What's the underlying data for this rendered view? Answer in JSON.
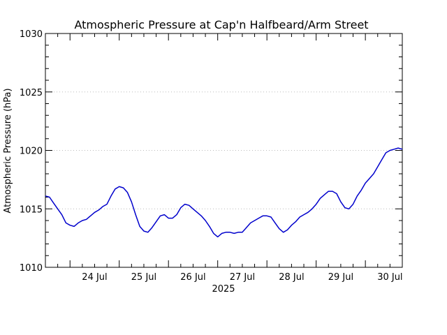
{
  "chart_data": {
    "type": "line",
    "title": "Atmospheric Pressure at Cap'n Halfbeard/Arm Street",
    "xlabel": "2025",
    "ylabel": "Atmospheric Pressure (hPa)",
    "xlim": [
      "2025-07-23 12:00",
      "2025-07-30 18:00"
    ],
    "ylim": [
      1010,
      1030
    ],
    "x_ticks": [
      {
        "label": "24 Jul",
        "x": "2025-07-24 12:00"
      },
      {
        "label": "25 Jul",
        "x": "2025-07-25 12:00"
      },
      {
        "label": "26 Jul",
        "x": "2025-07-26 12:00"
      },
      {
        "label": "27 Jul",
        "x": "2025-07-27 12:00"
      },
      {
        "label": "28 Jul",
        "x": "2025-07-28 12:00"
      },
      {
        "label": "29 Jul",
        "x": "2025-07-29 12:00"
      },
      {
        "label": "30 Jul",
        "x": "2025-07-30 12:00"
      }
    ],
    "y_ticks": [
      1010,
      1015,
      1020,
      1025,
      1030
    ],
    "grid": "horizontal dotted",
    "line_color": "#0000cc",
    "series": [
      {
        "points": [
          [
            "2025-07-23 12:00",
            1016.1
          ],
          [
            "2025-07-23 14:00",
            1016.0
          ],
          [
            "2025-07-23 16:00",
            1015.5
          ],
          [
            "2025-07-23 18:00",
            1015.0
          ],
          [
            "2025-07-23 20:00",
            1014.5
          ],
          [
            "2025-07-23 22:00",
            1013.8
          ],
          [
            "2025-07-24 00:00",
            1013.6
          ],
          [
            "2025-07-24 02:00",
            1013.5
          ],
          [
            "2025-07-24 04:00",
            1013.8
          ],
          [
            "2025-07-24 06:00",
            1014.0
          ],
          [
            "2025-07-24 08:00",
            1014.1
          ],
          [
            "2025-07-24 10:00",
            1014.4
          ],
          [
            "2025-07-24 12:00",
            1014.7
          ],
          [
            "2025-07-24 14:00",
            1014.9
          ],
          [
            "2025-07-24 16:00",
            1015.2
          ],
          [
            "2025-07-24 18:00",
            1015.4
          ],
          [
            "2025-07-24 20:00",
            1016.1
          ],
          [
            "2025-07-24 22:00",
            1016.7
          ],
          [
            "2025-07-25 00:00",
            1016.9
          ],
          [
            "2025-07-25 02:00",
            1016.8
          ],
          [
            "2025-07-25 04:00",
            1016.4
          ],
          [
            "2025-07-25 06:00",
            1015.6
          ],
          [
            "2025-07-25 08:00",
            1014.5
          ],
          [
            "2025-07-25 10:00",
            1013.5
          ],
          [
            "2025-07-25 12:00",
            1013.1
          ],
          [
            "2025-07-25 14:00",
            1013.0
          ],
          [
            "2025-07-25 16:00",
            1013.4
          ],
          [
            "2025-07-25 18:00",
            1013.9
          ],
          [
            "2025-07-25 20:00",
            1014.4
          ],
          [
            "2025-07-25 22:00",
            1014.5
          ],
          [
            "2025-07-26 00:00",
            1014.2
          ],
          [
            "2025-07-26 02:00",
            1014.2
          ],
          [
            "2025-07-26 04:00",
            1014.5
          ],
          [
            "2025-07-26 06:00",
            1015.1
          ],
          [
            "2025-07-26 08:00",
            1015.4
          ],
          [
            "2025-07-26 10:00",
            1015.3
          ],
          [
            "2025-07-26 12:00",
            1015.0
          ],
          [
            "2025-07-26 14:00",
            1014.7
          ],
          [
            "2025-07-26 16:00",
            1014.4
          ],
          [
            "2025-07-26 18:00",
            1014.0
          ],
          [
            "2025-07-26 20:00",
            1013.5
          ],
          [
            "2025-07-26 22:00",
            1012.9
          ],
          [
            "2025-07-27 00:00",
            1012.6
          ],
          [
            "2025-07-27 02:00",
            1012.9
          ],
          [
            "2025-07-27 04:00",
            1013.0
          ],
          [
            "2025-07-27 06:00",
            1013.0
          ],
          [
            "2025-07-27 08:00",
            1012.9
          ],
          [
            "2025-07-27 10:00",
            1013.0
          ],
          [
            "2025-07-27 12:00",
            1013.0
          ],
          [
            "2025-07-27 14:00",
            1013.4
          ],
          [
            "2025-07-27 16:00",
            1013.8
          ],
          [
            "2025-07-27 18:00",
            1014.0
          ],
          [
            "2025-07-27 20:00",
            1014.2
          ],
          [
            "2025-07-27 22:00",
            1014.4
          ],
          [
            "2025-07-28 00:00",
            1014.4
          ],
          [
            "2025-07-28 02:00",
            1014.3
          ],
          [
            "2025-07-28 04:00",
            1013.8
          ],
          [
            "2025-07-28 06:00",
            1013.3
          ],
          [
            "2025-07-28 08:00",
            1013.0
          ],
          [
            "2025-07-28 10:00",
            1013.2
          ],
          [
            "2025-07-28 12:00",
            1013.6
          ],
          [
            "2025-07-28 14:00",
            1013.9
          ],
          [
            "2025-07-28 16:00",
            1014.3
          ],
          [
            "2025-07-28 18:00",
            1014.5
          ],
          [
            "2025-07-28 20:00",
            1014.7
          ],
          [
            "2025-07-28 22:00",
            1015.0
          ],
          [
            "2025-07-29 00:00",
            1015.4
          ],
          [
            "2025-07-29 02:00",
            1015.9
          ],
          [
            "2025-07-29 04:00",
            1016.2
          ],
          [
            "2025-07-29 06:00",
            1016.5
          ],
          [
            "2025-07-29 08:00",
            1016.5
          ],
          [
            "2025-07-29 10:00",
            1016.3
          ],
          [
            "2025-07-29 12:00",
            1015.6
          ],
          [
            "2025-07-29 14:00",
            1015.1
          ],
          [
            "2025-07-29 16:00",
            1015.0
          ],
          [
            "2025-07-29 18:00",
            1015.4
          ],
          [
            "2025-07-29 20:00",
            1016.1
          ],
          [
            "2025-07-29 22:00",
            1016.6
          ],
          [
            "2025-07-30 00:00",
            1017.2
          ],
          [
            "2025-07-30 02:00",
            1017.6
          ],
          [
            "2025-07-30 04:00",
            1018.0
          ],
          [
            "2025-07-30 06:00",
            1018.6
          ],
          [
            "2025-07-30 08:00",
            1019.2
          ],
          [
            "2025-07-30 10:00",
            1019.8
          ],
          [
            "2025-07-30 12:00",
            1020.0
          ],
          [
            "2025-07-30 14:00",
            1020.1
          ],
          [
            "2025-07-30 16:00",
            1020.2
          ],
          [
            "2025-07-30 18:00",
            1020.1
          ]
        ]
      }
    ]
  }
}
